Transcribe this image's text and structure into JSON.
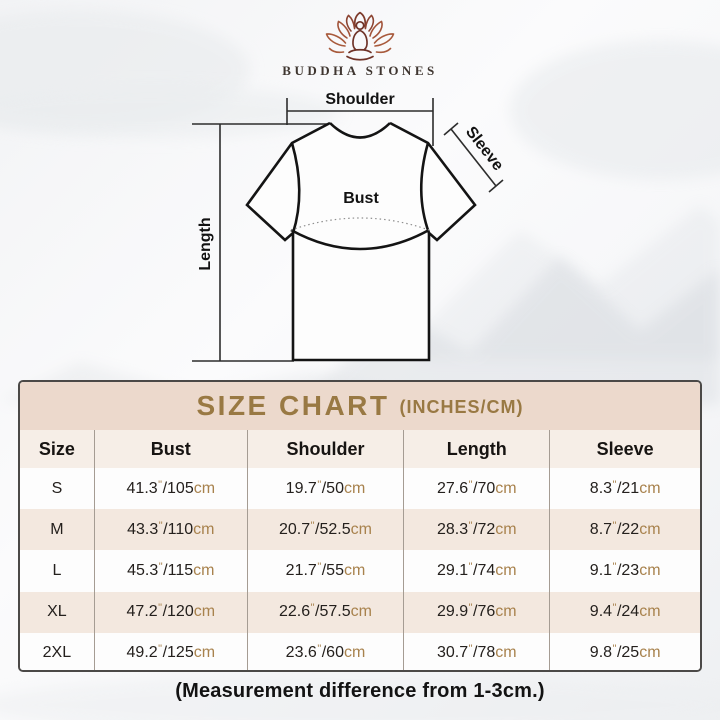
{
  "brand": {
    "name": "BUDDHA STONES"
  },
  "diagram": {
    "labels": {
      "shoulder": "Shoulder",
      "sleeve": "Sleeve",
      "bust": "Bust",
      "length": "Length"
    }
  },
  "size_chart": {
    "title": "SIZE CHART",
    "title_suffix": "(INCHES/CM)",
    "columns": [
      "Size",
      "Bust",
      "Shoulder",
      "Length",
      "Sleeve"
    ],
    "unit_inch_mark": "\"",
    "unit_cm": "cm",
    "rows": [
      {
        "size": "S",
        "bust": {
          "in": "41.3",
          "cm": "105"
        },
        "shoulder": {
          "in": "19.7",
          "cm": "50"
        },
        "length": {
          "in": "27.6",
          "cm": "70"
        },
        "sleeve": {
          "in": "8.3",
          "cm": "21"
        }
      },
      {
        "size": "M",
        "bust": {
          "in": "43.3",
          "cm": "110"
        },
        "shoulder": {
          "in": "20.7",
          "cm": "52.5"
        },
        "length": {
          "in": "28.3",
          "cm": "72"
        },
        "sleeve": {
          "in": "8.7",
          "cm": "22"
        }
      },
      {
        "size": "L",
        "bust": {
          "in": "45.3",
          "cm": "115"
        },
        "shoulder": {
          "in": "21.7",
          "cm": "55"
        },
        "length": {
          "in": "29.1",
          "cm": "74"
        },
        "sleeve": {
          "in": "9.1",
          "cm": "23"
        }
      },
      {
        "size": "XL",
        "bust": {
          "in": "47.2",
          "cm": "120"
        },
        "shoulder": {
          "in": "22.6",
          "cm": "57.5"
        },
        "length": {
          "in": "29.9",
          "cm": "76"
        },
        "sleeve": {
          "in": "9.4",
          "cm": "24"
        }
      },
      {
        "size": "2XL",
        "bust": {
          "in": "49.2",
          "cm": "125"
        },
        "shoulder": {
          "in": "23.6",
          "cm": "60"
        },
        "length": {
          "in": "30.7",
          "cm": "78"
        },
        "sleeve": {
          "in": "9.8",
          "cm": "25"
        }
      }
    ]
  },
  "caption": "(Measurement difference from 1-3cm.)",
  "colors": {
    "accent_gold": "#997943",
    "value_gold": "#a8824d",
    "band_bg": "#ecd9cc",
    "row_alt_bg": "#f3e8df",
    "header_row_bg": "#f6eee7",
    "border": "#4b4947"
  }
}
